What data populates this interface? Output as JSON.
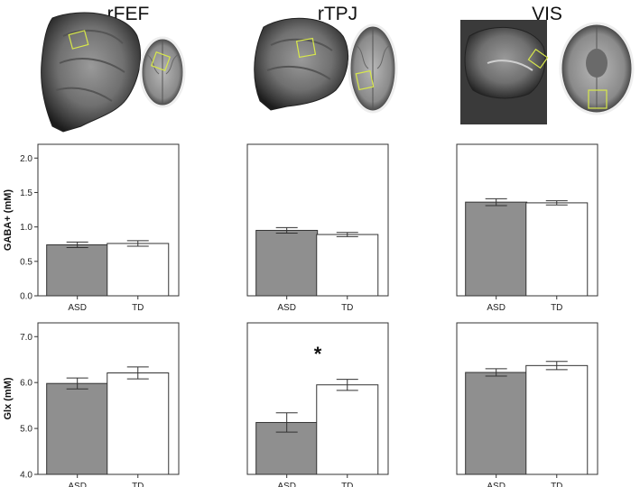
{
  "regions": [
    "rFEF",
    "rTPJ",
    "VIS"
  ],
  "colors": {
    "asd_fill": "#8f8f8f",
    "td_fill": "#ffffff",
    "stroke": "#333333",
    "voxel": "#d8e84a"
  },
  "brain_images": [
    {
      "region": "rFEF",
      "views": [
        "sagittal-brain-image",
        "axial-brain-image"
      ]
    },
    {
      "region": "rTPJ",
      "views": [
        "sagittal-brain-image",
        "axial-brain-image"
      ]
    },
    {
      "region": "VIS",
      "views": [
        "sagittal-brain-image",
        "axial-brain-image"
      ]
    }
  ],
  "chart_data": [
    {
      "type": "bar",
      "row": "GABA",
      "region": "rFEF",
      "categories": [
        "ASD",
        "TD"
      ],
      "values": [
        0.74,
        0.76
      ],
      "errors": [
        0.04,
        0.04
      ],
      "ylabel": "GABA+ (mM)",
      "ylim": [
        0,
        2.2
      ],
      "yticks": [
        "0.0",
        "0.5",
        "1.0",
        "1.5",
        "2.0"
      ],
      "significance": ""
    },
    {
      "type": "bar",
      "row": "GABA",
      "region": "rTPJ",
      "categories": [
        "ASD",
        "TD"
      ],
      "values": [
        0.95,
        0.89
      ],
      "errors": [
        0.04,
        0.03
      ],
      "ylabel": "",
      "ylim": [
        0,
        2.2
      ],
      "yticks": [],
      "significance": ""
    },
    {
      "type": "bar",
      "row": "GABA",
      "region": "VIS",
      "categories": [
        "ASD",
        "TD"
      ],
      "values": [
        1.36,
        1.35
      ],
      "errors": [
        0.05,
        0.03
      ],
      "ylabel": "",
      "ylim": [
        0,
        2.2
      ],
      "yticks": [],
      "significance": ""
    },
    {
      "type": "bar",
      "row": "Glx",
      "region": "rFEF",
      "categories": [
        "ASD",
        "TD"
      ],
      "values": [
        5.98,
        6.21
      ],
      "errors": [
        0.12,
        0.13
      ],
      "ylabel": "Glx (mM)",
      "ylim": [
        4.0,
        7.3
      ],
      "yticks": [
        "4.0",
        "5.0",
        "6.0",
        "7.0"
      ],
      "significance": ""
    },
    {
      "type": "bar",
      "row": "Glx",
      "region": "rTPJ",
      "categories": [
        "ASD",
        "TD"
      ],
      "values": [
        5.13,
        5.95
      ],
      "errors": [
        0.21,
        0.12
      ],
      "ylabel": "",
      "ylim": [
        4.0,
        7.3
      ],
      "yticks": [],
      "significance": "*"
    },
    {
      "type": "bar",
      "row": "Glx",
      "region": "VIS",
      "categories": [
        "ASD",
        "TD"
      ],
      "values": [
        6.22,
        6.37
      ],
      "errors": [
        0.08,
        0.09
      ],
      "ylabel": "",
      "ylim": [
        4.0,
        7.3
      ],
      "yticks": [],
      "significance": ""
    }
  ]
}
